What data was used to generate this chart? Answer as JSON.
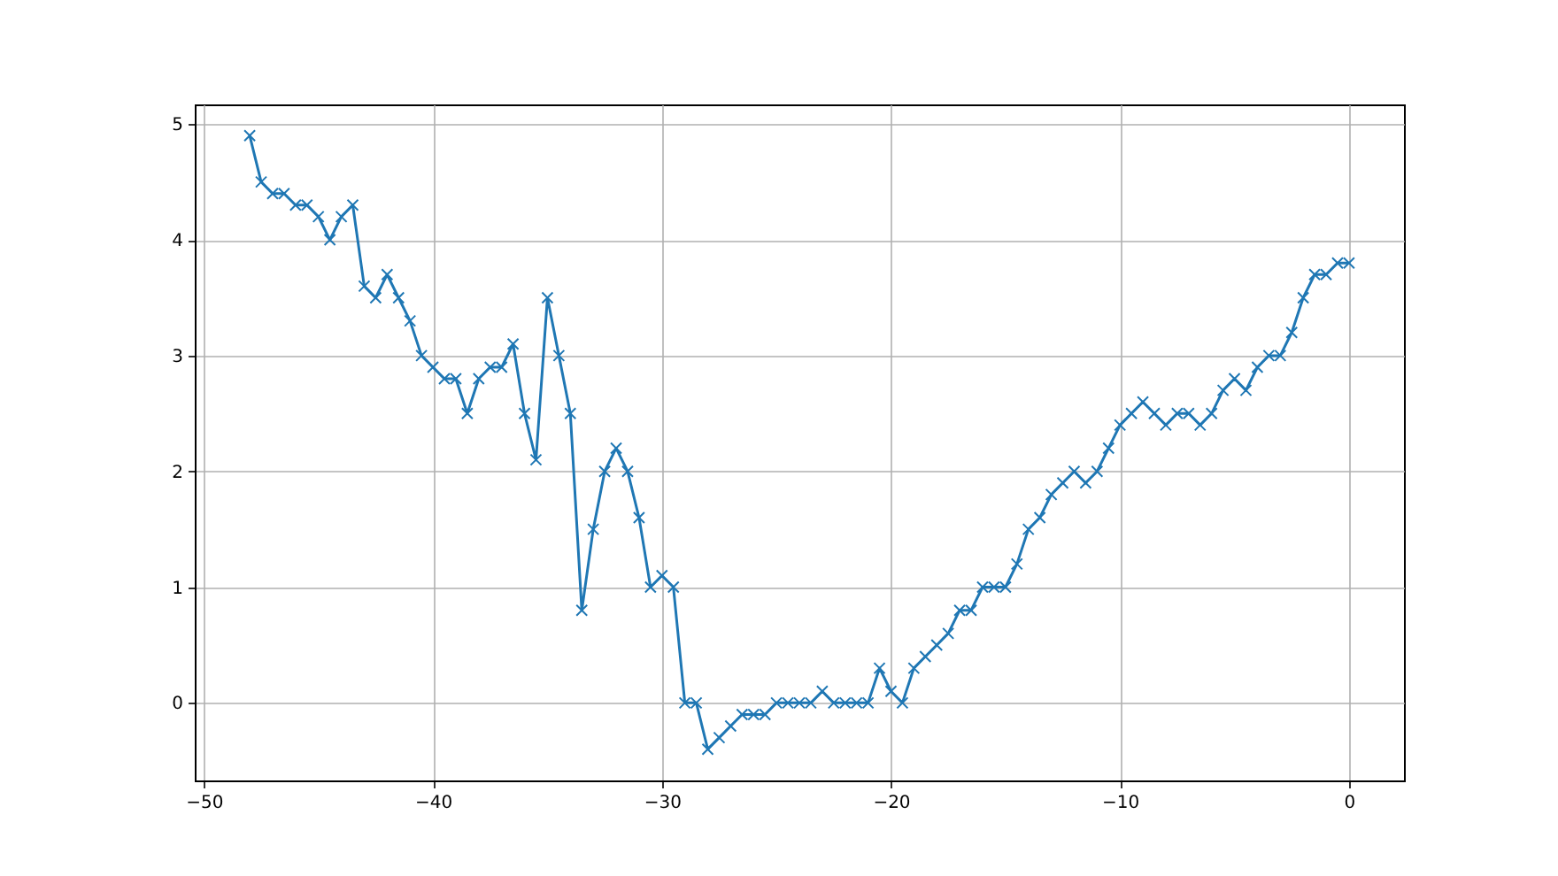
{
  "chart_data": {
    "type": "line",
    "x": [
      -48,
      -47.5,
      -47,
      -46.5,
      -46,
      -45.5,
      -45,
      -44.5,
      -44,
      -43.5,
      -43,
      -42.5,
      -42,
      -41.5,
      -41,
      -40.5,
      -40,
      -39.5,
      -39,
      -38.5,
      -38,
      -37.5,
      -37,
      -36.5,
      -36,
      -35.5,
      -35,
      -34.5,
      -34,
      -33.5,
      -33,
      -32.5,
      -32,
      -31.5,
      -31,
      -30.5,
      -30,
      -29.5,
      -29,
      -28.5,
      -28,
      -27.5,
      -27,
      -26.5,
      -26,
      -25.5,
      -25,
      -24.5,
      -24,
      -23.5,
      -23,
      -22.5,
      -22,
      -21.5,
      -21,
      -20.5,
      -20,
      -19.5,
      -19,
      -18.5,
      -18,
      -17.5,
      -17,
      -16.5,
      -16,
      -15.5,
      -15,
      -14.5,
      -14,
      -13.5,
      -13,
      -12.5,
      -12,
      -11.5,
      -11,
      -10.5,
      -10,
      -9.5,
      -9,
      -8.5,
      -8,
      -7.5,
      -7,
      -6.5,
      -6,
      -5.5,
      -5,
      -4.5,
      -4,
      -3.5,
      -3,
      -2.5,
      -2,
      -1.5,
      -1,
      -0.5,
      0
    ],
    "values": [
      4.9,
      4.5,
      4.4,
      4.4,
      4.3,
      4.3,
      4.2,
      4.0,
      4.2,
      4.3,
      3.6,
      3.5,
      3.7,
      3.5,
      3.3,
      3.0,
      2.9,
      2.8,
      2.8,
      2.5,
      2.8,
      2.9,
      2.9,
      3.1,
      2.5,
      2.1,
      3.5,
      3.0,
      2.5,
      0.8,
      1.5,
      2.0,
      2.2,
      2.0,
      1.6,
      1.0,
      1.1,
      1.0,
      0.0,
      0.0,
      -0.4,
      -0.3,
      -0.2,
      -0.1,
      -0.1,
      -0.1,
      0.0,
      0.0,
      0.0,
      0.0,
      0.1,
      0.0,
      0.0,
      0.0,
      0.0,
      0.3,
      0.1,
      0.0,
      0.3,
      0.4,
      0.5,
      0.6,
      0.8,
      0.8,
      1.0,
      1.0,
      1.0,
      1.2,
      1.5,
      1.6,
      1.8,
      1.9,
      2.0,
      1.9,
      2.0,
      2.2,
      2.4,
      2.5,
      2.6,
      2.5,
      2.4,
      2.5,
      2.5,
      2.4,
      2.5,
      2.7,
      2.8,
      2.7,
      2.9,
      3.0,
      3.0,
      3.2,
      3.5,
      3.7,
      3.7,
      3.8,
      3.8
    ],
    "color": "#1f77b4",
    "xlim": [
      -50.4,
      2.4
    ],
    "ylim": [
      -0.67,
      5.17
    ],
    "xticks": [
      -50,
      -40,
      -30,
      -20,
      -10,
      0
    ],
    "yticks": [
      0,
      1,
      2,
      3,
      4,
      5
    ],
    "grid": true,
    "marker": "cross"
  }
}
